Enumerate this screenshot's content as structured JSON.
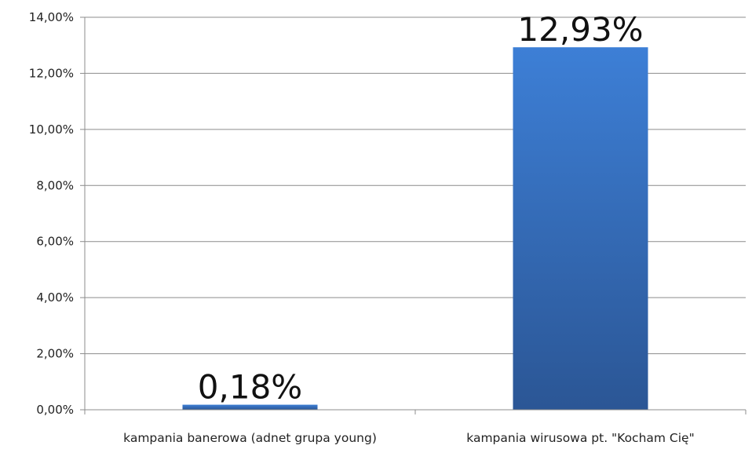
{
  "chart_data": {
    "type": "bar",
    "categories": [
      "kampania banerowa (adnet grupa young)",
      "kampania wirusowa pt. \"Kocham Cię\""
    ],
    "values": [
      0.18,
      12.93
    ],
    "data_labels": [
      "0,18%",
      "12,93%"
    ],
    "title": "",
    "xlabel": "",
    "ylabel": "",
    "ylim": [
      0,
      14
    ],
    "yticks": [
      0,
      2,
      4,
      6,
      8,
      10,
      12,
      14
    ],
    "ytick_labels": [
      "0,00%",
      "2,00%",
      "4,00%",
      "6,00%",
      "8,00%",
      "10,00%",
      "12,00%",
      "14,00%"
    ],
    "grid": true,
    "legend": "none",
    "bar_color": "#3a6fb8"
  }
}
